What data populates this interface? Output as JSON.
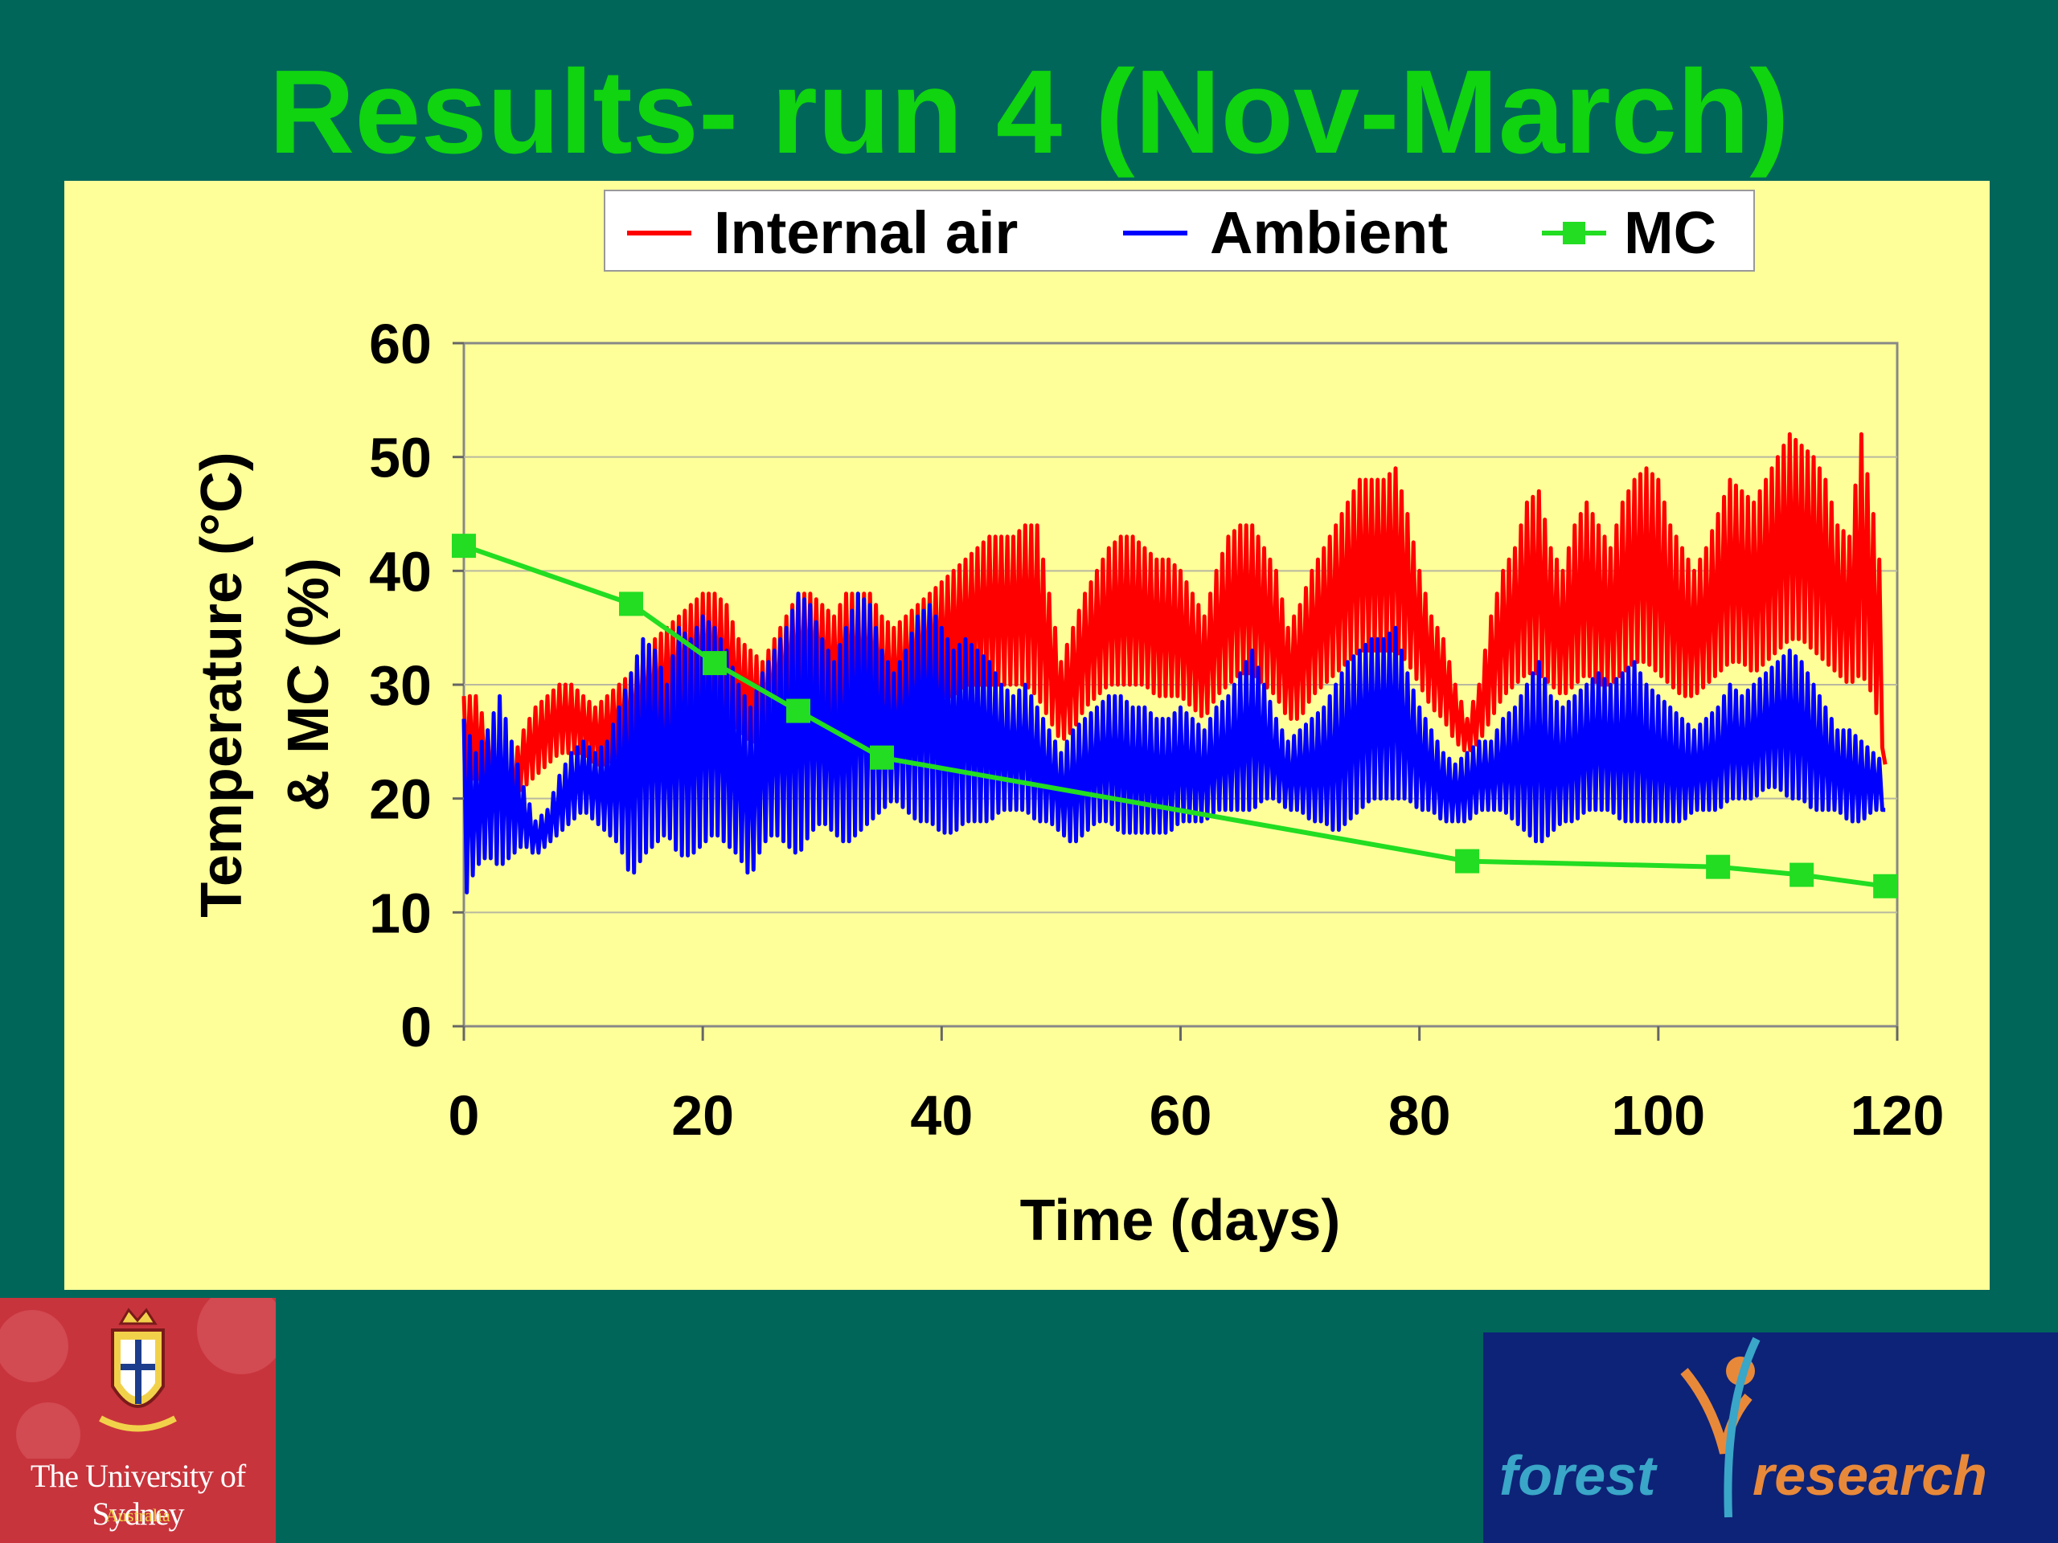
{
  "slide": {
    "title": "Results- run 4 (Nov-March)"
  },
  "colors": {
    "background": "#00665a",
    "title": "#0fd40f",
    "plot_background": "#ffff99",
    "internal_air": "#ff0000",
    "ambient": "#0000ff",
    "mc": "#22dd22"
  },
  "chart_data": {
    "type": "line",
    "title": "",
    "xlabel": "Time (days)",
    "ylabel_lines": [
      "Temperature (°C)",
      "& MC (%)"
    ],
    "xlim": [
      0,
      120
    ],
    "ylim": [
      0,
      60
    ],
    "x_ticks": [
      0,
      20,
      40,
      60,
      80,
      100,
      120
    ],
    "y_ticks": [
      0,
      10,
      20,
      30,
      40,
      50,
      60
    ],
    "grid": "horizontal",
    "legend_position": "top",
    "legend": [
      "Internal air",
      "Ambient",
      "MC"
    ],
    "series": [
      {
        "name": "Internal air",
        "color": "#ff0000",
        "style": "line",
        "x": [
          0,
          1,
          2,
          3,
          4,
          5,
          6,
          7,
          8,
          9,
          10,
          11,
          12,
          13,
          14,
          15,
          16,
          17,
          18,
          19,
          20,
          21,
          22,
          23,
          24,
          25,
          26,
          27,
          28,
          29,
          30,
          31,
          32,
          33,
          34,
          35,
          36,
          37,
          38,
          39,
          40,
          41,
          42,
          43,
          44,
          45,
          46,
          47,
          48,
          49,
          50,
          51,
          52,
          53,
          54,
          55,
          56,
          57,
          58,
          59,
          60,
          61,
          62,
          63,
          64,
          65,
          66,
          67,
          68,
          69,
          70,
          71,
          72,
          73,
          74,
          75,
          76,
          77,
          78,
          79,
          80,
          81,
          82,
          83,
          84,
          85,
          86,
          87,
          88,
          89,
          90,
          91,
          92,
          93,
          94,
          95,
          96,
          97,
          98,
          99,
          100,
          101,
          102,
          103,
          104,
          105,
          106,
          107,
          108,
          109,
          110,
          111,
          112,
          113,
          114,
          115,
          116,
          117,
          118,
          119
        ],
        "max": [
          29,
          29,
          26,
          24,
          23,
          26,
          28,
          29,
          30,
          30,
          29,
          28,
          29,
          30,
          31,
          33,
          34,
          35,
          36,
          37,
          38,
          38,
          37,
          34,
          33,
          32,
          34,
          36,
          38,
          38,
          37,
          36,
          38,
          38,
          38,
          36,
          35,
          36,
          37,
          38,
          39,
          40,
          41,
          42,
          43,
          43,
          43,
          44,
          44,
          38,
          32,
          35,
          38,
          40,
          42,
          43,
          43,
          42,
          41,
          41,
          40,
          38,
          36,
          40,
          43,
          44,
          44,
          42,
          40,
          35,
          37,
          40,
          42,
          44,
          46,
          48,
          48,
          48,
          49,
          45,
          40,
          36,
          34,
          30,
          27,
          30,
          36,
          40,
          42,
          46,
          47,
          42,
          40,
          44,
          46,
          44,
          42,
          46,
          48,
          49,
          48,
          44,
          42,
          40,
          42,
          45,
          48,
          47,
          46,
          48,
          50,
          52,
          51,
          50,
          48,
          44,
          43,
          52,
          45,
          37
        ],
        "min": [
          21,
          22,
          21,
          20,
          20,
          21,
          22,
          23,
          24,
          24,
          24,
          23,
          23,
          24,
          24,
          25,
          25,
          26,
          26,
          27,
          27,
          27,
          27,
          26,
          25,
          25,
          26,
          27,
          28,
          28,
          28,
          27,
          27,
          26,
          26,
          26,
          26,
          27,
          28,
          29,
          29,
          29,
          30,
          30,
          30,
          30,
          30,
          30,
          29,
          27,
          25,
          26,
          28,
          29,
          30,
          30,
          30,
          30,
          29,
          29,
          29,
          28,
          27,
          29,
          30,
          31,
          31,
          30,
          29,
          27,
          27,
          29,
          30,
          31,
          32,
          33,
          33,
          33,
          33,
          32,
          30,
          28,
          27,
          25,
          24,
          25,
          27,
          29,
          30,
          31,
          31,
          30,
          29,
          30,
          31,
          30,
          30,
          31,
          32,
          32,
          31,
          30,
          29,
          29,
          30,
          31,
          32,
          32,
          31,
          32,
          33,
          34,
          34,
          33,
          32,
          31,
          30,
          31,
          29,
          23
        ]
      },
      {
        "name": "Ambient",
        "color": "#0000ff",
        "style": "line",
        "x": [
          0,
          1,
          2,
          3,
          4,
          5,
          6,
          7,
          8,
          9,
          10,
          11,
          12,
          13,
          14,
          15,
          16,
          17,
          18,
          19,
          20,
          21,
          22,
          23,
          24,
          25,
          26,
          27,
          28,
          29,
          30,
          31,
          32,
          33,
          34,
          35,
          36,
          37,
          38,
          39,
          40,
          41,
          42,
          43,
          44,
          45,
          46,
          47,
          48,
          49,
          50,
          51,
          52,
          53,
          54,
          55,
          56,
          57,
          58,
          59,
          60,
          61,
          62,
          63,
          64,
          65,
          66,
          67,
          68,
          69,
          70,
          71,
          72,
          73,
          74,
          75,
          76,
          77,
          78,
          79,
          80,
          81,
          82,
          83,
          84,
          85,
          86,
          87,
          88,
          89,
          90,
          91,
          92,
          93,
          94,
          95,
          96,
          97,
          98,
          99,
          100,
          101,
          102,
          103,
          104,
          105,
          106,
          107,
          108,
          109,
          110,
          111,
          112,
          113,
          114,
          115,
          116,
          117,
          118,
          119
        ],
        "max": [
          27,
          24,
          26,
          29,
          25,
          21,
          18,
          19,
          22,
          24,
          25,
          24,
          25,
          28,
          31,
          34,
          33,
          30,
          35,
          34,
          36,
          35,
          33,
          30,
          28,
          31,
          33,
          35,
          38,
          37,
          34,
          32,
          35,
          38,
          37,
          33,
          31,
          33,
          36,
          37,
          35,
          33,
          34,
          33,
          32,
          30,
          29,
          30,
          28,
          26,
          24,
          26,
          27,
          28,
          29,
          29,
          28,
          28,
          27,
          27,
          28,
          27,
          26,
          28,
          29,
          31,
          33,
          30,
          27,
          25,
          26,
          27,
          28,
          30,
          32,
          33,
          34,
          34,
          35,
          31,
          28,
          26,
          24,
          23,
          24,
          25,
          25,
          27,
          28,
          30,
          32,
          29,
          28,
          29,
          30,
          31,
          30,
          31,
          32,
          30,
          29,
          28,
          27,
          26,
          27,
          28,
          30,
          29,
          30,
          31,
          32,
          33,
          32,
          30,
          28,
          26,
          26,
          25,
          24,
          23
        ],
        "min": [
          11,
          14,
          15,
          14,
          15,
          16,
          15,
          16,
          17,
          18,
          19,
          18,
          17,
          16,
          13,
          15,
          16,
          17,
          15,
          15,
          16,
          17,
          16,
          15,
          13,
          16,
          17,
          16,
          15,
          17,
          18,
          17,
          16,
          17,
          18,
          19,
          20,
          19,
          18,
          18,
          17,
          17,
          18,
          18,
          18,
          19,
          19,
          19,
          18,
          18,
          17,
          16,
          17,
          18,
          18,
          17,
          17,
          17,
          17,
          17,
          18,
          18,
          18,
          19,
          19,
          19,
          19,
          20,
          20,
          19,
          19,
          18,
          18,
          17,
          18,
          19,
          20,
          20,
          20,
          20,
          19,
          19,
          18,
          18,
          18,
          19,
          19,
          19,
          18,
          17,
          16,
          17,
          18,
          18,
          19,
          19,
          19,
          18,
          18,
          18,
          18,
          18,
          18,
          19,
          19,
          19,
          20,
          20,
          20,
          21,
          21,
          20,
          20,
          19,
          19,
          19,
          18,
          18,
          19,
          19
        ]
      },
      {
        "name": "MC",
        "color": "#22dd22",
        "style": "line-markers",
        "x": [
          0,
          14,
          21,
          28,
          35,
          84,
          105,
          112,
          119
        ],
        "y": [
          42.2,
          37.1,
          31.9,
          27.7,
          23.6,
          14.5,
          14.0,
          13.3,
          12.3
        ]
      }
    ]
  },
  "logos": {
    "sydney": {
      "name": "The University of Sydney",
      "sub": "Australia"
    },
    "forest": {
      "word1": "forest",
      "word2": "research"
    }
  }
}
